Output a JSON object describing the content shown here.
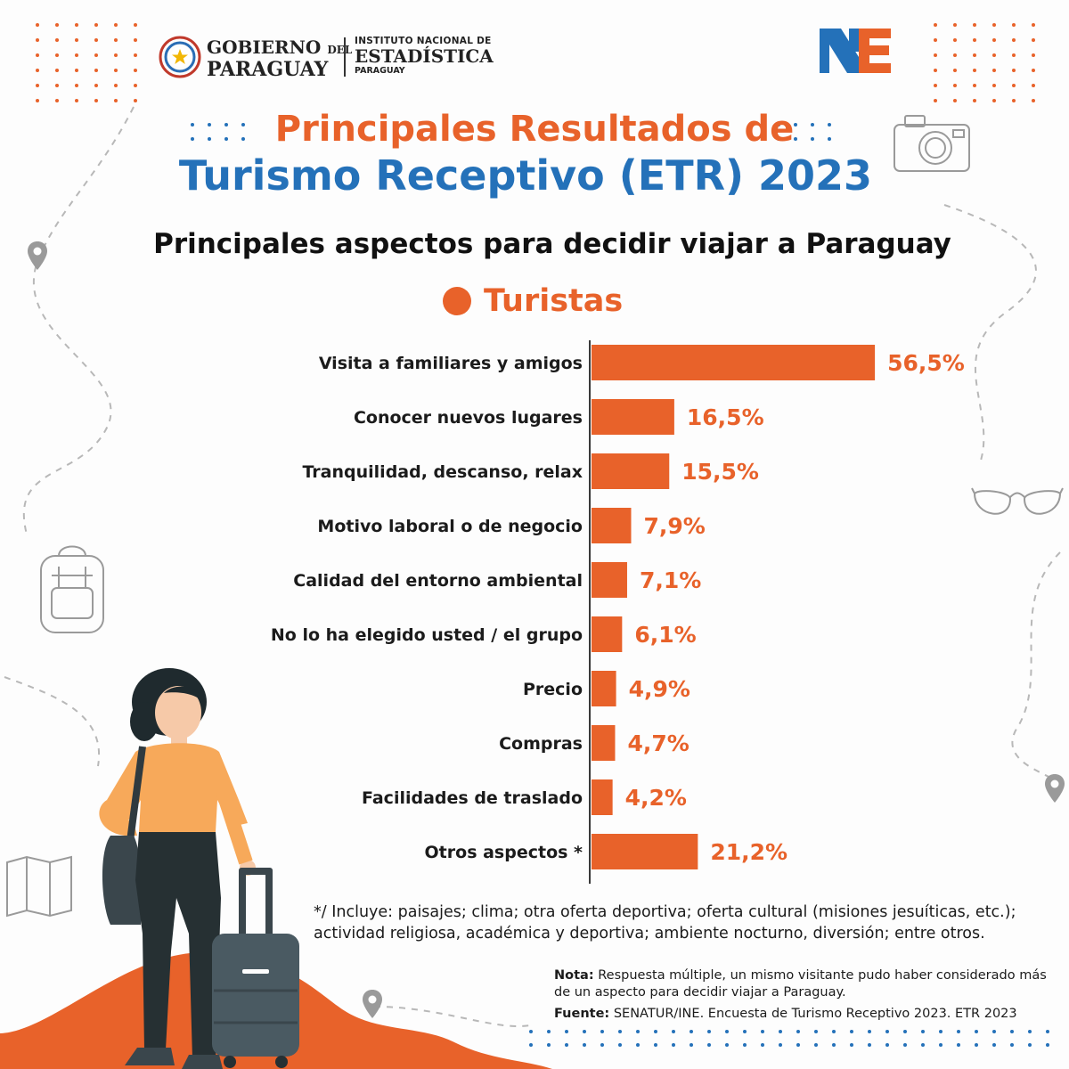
{
  "header": {
    "gobierno_line1": "GOBIERNO",
    "gobierno_del": "DEL",
    "gobierno_line2": "PARAGUAY",
    "ine_line1": "INSTITUTO NACIONAL DE",
    "ine_line2": "ESTADÍSTICA",
    "ine_line3": "PARAGUAY"
  },
  "title_line1": "Principales Resultados de",
  "title_line2": "Turismo Receptivo (ETR) 2023",
  "colors": {
    "orange": "#e8622a",
    "blue": "#2471b9",
    "dark": "#1b1b1b",
    "sketch": "#9a9a9a"
  },
  "chart_data": {
    "type": "bar",
    "orientation": "horizontal",
    "title": "Principales aspectos para decidir viajar a Paraguay",
    "legend": [
      "Turistas"
    ],
    "categories": [
      "Visita a familiares y amigos",
      "Conocer nuevos lugares",
      "Tranquilidad, descanso, relax",
      "Motivo laboral o de negocio",
      "Calidad del entorno ambiental",
      "No lo ha elegido usted / el grupo",
      "Precio",
      "Compras",
      "Facilidades de traslado",
      "Otros aspectos *"
    ],
    "series": [
      {
        "name": "Turistas",
        "values": [
          56.5,
          16.5,
          15.5,
          7.9,
          7.1,
          6.1,
          4.9,
          4.7,
          4.2,
          21.2
        ]
      }
    ],
    "value_labels": [
      "56,5%",
      "16,5%",
      "15,5%",
      "7,9%",
      "7,1%",
      "6,1%",
      "4,9%",
      "4,7%",
      "4,2%",
      "21,2%"
    ],
    "grid": false
  },
  "footnote": "*/ Incluye: paisajes; clima; otra oferta deportiva; oferta cultural (misiones jesuíticas, etc.); actividad religiosa, académica y deportiva; ambiente nocturno, diversión; entre otros.",
  "nota": {
    "label": "Nota:",
    "text": " Respuesta múltiple, un mismo visitante pudo haber considerado más de un aspecto para decidir viajar a Paraguay."
  },
  "fuente": {
    "label": "Fuente:",
    "text": " SENATUR/INE. Encuesta de Turismo Receptivo 2023. ETR 2023"
  },
  "icons": [
    "gobierno-seal-icon",
    "ine-logo-icon",
    "camera-icon",
    "location-pin-icon",
    "sunglasses-icon",
    "backpack-icon",
    "map-icon",
    "traveler-illustration",
    "suitcase-icon"
  ]
}
